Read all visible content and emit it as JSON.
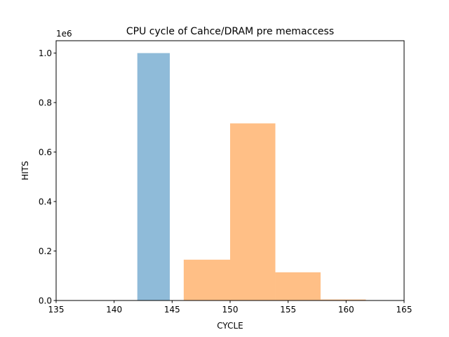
{
  "chart_data": {
    "type": "bar",
    "title": "CPU cycle of Cahce/DRAM pre memaccess",
    "xlabel": "CYCLE",
    "ylabel": "HITS",
    "y_multiplier": "1e6",
    "xlim": [
      135,
      165
    ],
    "ylim": [
      0,
      1.05
    ],
    "x_ticks": [
      "135",
      "140",
      "145",
      "150",
      "155",
      "160",
      "165"
    ],
    "y_ticks": [
      "0.0",
      "0.2",
      "0.4",
      "0.6",
      "0.8",
      "1.0"
    ],
    "grid": false,
    "legend": "none",
    "series": [
      {
        "color": "#8fbbd9",
        "bins": [
          {
            "x0": 142.0,
            "x1": 144.8,
            "value": 1.0
          }
        ]
      },
      {
        "color": "#ffbf86",
        "bins": [
          {
            "x0": 146.0,
            "x1": 150.0,
            "value": 0.165
          },
          {
            "x0": 150.0,
            "x1": 153.9,
            "value": 0.716
          },
          {
            "x0": 153.9,
            "x1": 157.8,
            "value": 0.114
          },
          {
            "x0": 157.8,
            "x1": 161.7,
            "value": 0.004
          }
        ]
      }
    ]
  }
}
